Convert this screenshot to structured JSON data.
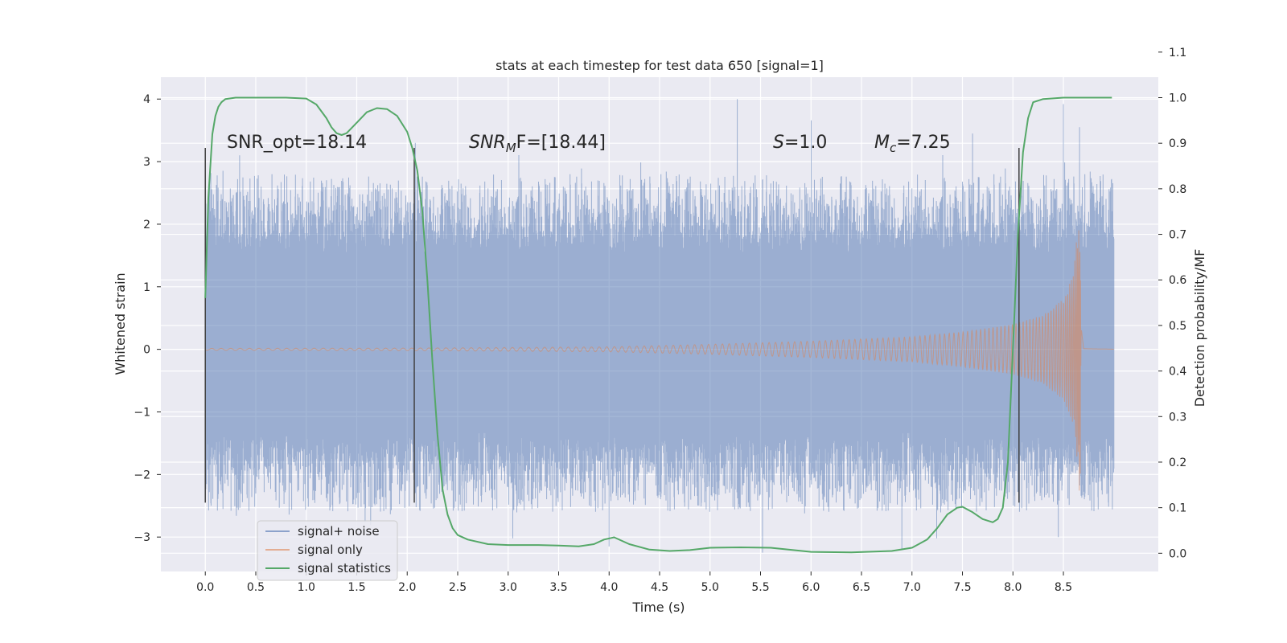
{
  "chart_data": {
    "type": "line",
    "title": "stats at each timestep for test data 650 [signal=1]",
    "xlabel": "Time (s)",
    "ylabel": "Whitened strain",
    "ylabel_right": "Detection probability/MF",
    "xlim": [
      -0.44,
      9.44
    ],
    "ylim": [
      -3.55,
      4.35
    ],
    "ylim_right": [
      -0.04,
      1.045
    ],
    "x_ticks": [
      "0.0",
      "0.5",
      "1.0",
      "1.5",
      "2.0",
      "2.5",
      "3.0",
      "3.5",
      "4.0",
      "4.5",
      "5.0",
      "5.5",
      "6.0",
      "6.5",
      "7.0",
      "7.5",
      "8.0",
      "8.5"
    ],
    "y_ticks": [
      "4",
      "3",
      "2",
      "1",
      "0",
      "−1",
      "−2",
      "−3"
    ],
    "y_right_ticks": [
      "1.1",
      "1.0",
      "0.9",
      "0.8",
      "0.7",
      "0.6",
      "0.5",
      "0.4",
      "0.3",
      "0.2",
      "0.1",
      "0.0"
    ],
    "grid": true,
    "legend": {
      "position": "lower-left",
      "entries": [
        "signal+ noise",
        "signal only",
        "signal statistics"
      ]
    },
    "colors": {
      "noise": "#4c72b0",
      "signal": "#dd8452",
      "stats": "#55a868",
      "background": "#eaeaf2",
      "grid": "#ffffff",
      "vline": "#404040"
    },
    "annotations": {
      "snr_opt": "SNR_opt=18.14",
      "snr_mf_label": "SNR",
      "snr_mf_sub": "M",
      "snr_mf_rest": "F=[18.44]",
      "s_label": "S",
      "s_rest": "=1.0",
      "mc_label": "M",
      "mc_sub": "c",
      "mc_rest": "=7.25"
    },
    "vertical_lines_x": [
      0.0,
      2.07,
      8.06
    ],
    "vertical_lines_yrange": [
      -2.45,
      3.22
    ],
    "noise_envelope": {
      "x_start": 0.0,
      "x_end": 9.0,
      "typical_max": 2.2,
      "typical_min": -2.1,
      "dense_band": [
        -1.3,
        1.5
      ],
      "peak_max": 4.0,
      "peak_min": -3.25
    },
    "signal_only": {
      "type": "chirp",
      "x_start": 0.0,
      "x_merger": 8.68,
      "amplitude_points": [
        [
          0.0,
          0.015
        ],
        [
          2.0,
          0.02
        ],
        [
          4.0,
          0.04
        ],
        [
          5.0,
          0.08
        ],
        [
          6.0,
          0.13
        ],
        [
          7.0,
          0.2
        ],
        [
          7.5,
          0.28
        ],
        [
          8.0,
          0.4
        ],
        [
          8.3,
          0.55
        ],
        [
          8.5,
          0.8
        ],
        [
          8.6,
          1.2
        ],
        [
          8.66,
          2.3
        ],
        [
          8.68,
          1.5
        ],
        [
          8.7,
          0.05
        ],
        [
          9.0,
          0.01
        ]
      ]
    },
    "series": [
      {
        "name": "signal statistics",
        "axis": "right",
        "x": [
          0.0,
          0.03,
          0.07,
          0.1,
          0.13,
          0.16,
          0.2,
          0.3,
          0.4,
          0.6,
          0.8,
          1.0,
          1.1,
          1.2,
          1.25,
          1.3,
          1.35,
          1.4,
          1.5,
          1.6,
          1.7,
          1.8,
          1.9,
          2.0,
          2.05,
          2.1,
          2.15,
          2.2,
          2.25,
          2.3,
          2.35,
          2.4,
          2.45,
          2.5,
          2.6,
          2.8,
          3.0,
          3.3,
          3.5,
          3.7,
          3.85,
          3.95,
          4.05,
          4.2,
          4.4,
          4.6,
          4.8,
          5.0,
          5.3,
          5.6,
          6.0,
          6.4,
          6.8,
          7.0,
          7.15,
          7.25,
          7.35,
          7.45,
          7.5,
          7.6,
          7.7,
          7.8,
          7.85,
          7.9,
          7.95,
          8.0,
          8.05,
          8.1,
          8.15,
          8.2,
          8.3,
          8.5,
          8.7,
          8.9,
          8.98
        ],
        "values": [
          0.56,
          0.78,
          0.92,
          0.96,
          0.98,
          0.99,
          0.997,
          1.0,
          1.0,
          1.0,
          1.0,
          0.998,
          0.985,
          0.955,
          0.935,
          0.922,
          0.918,
          0.922,
          0.945,
          0.968,
          0.977,
          0.975,
          0.96,
          0.925,
          0.89,
          0.84,
          0.75,
          0.6,
          0.42,
          0.26,
          0.14,
          0.085,
          0.055,
          0.04,
          0.03,
          0.02,
          0.018,
          0.018,
          0.017,
          0.015,
          0.02,
          0.03,
          0.035,
          0.02,
          0.008,
          0.005,
          0.007,
          0.012,
          0.013,
          0.012,
          0.003,
          0.002,
          0.005,
          0.012,
          0.03,
          0.055,
          0.085,
          0.1,
          0.102,
          0.09,
          0.075,
          0.068,
          0.075,
          0.1,
          0.2,
          0.45,
          0.7,
          0.88,
          0.955,
          0.99,
          0.997,
          1.0,
          1.0,
          1.0,
          1.0
        ]
      }
    ]
  }
}
